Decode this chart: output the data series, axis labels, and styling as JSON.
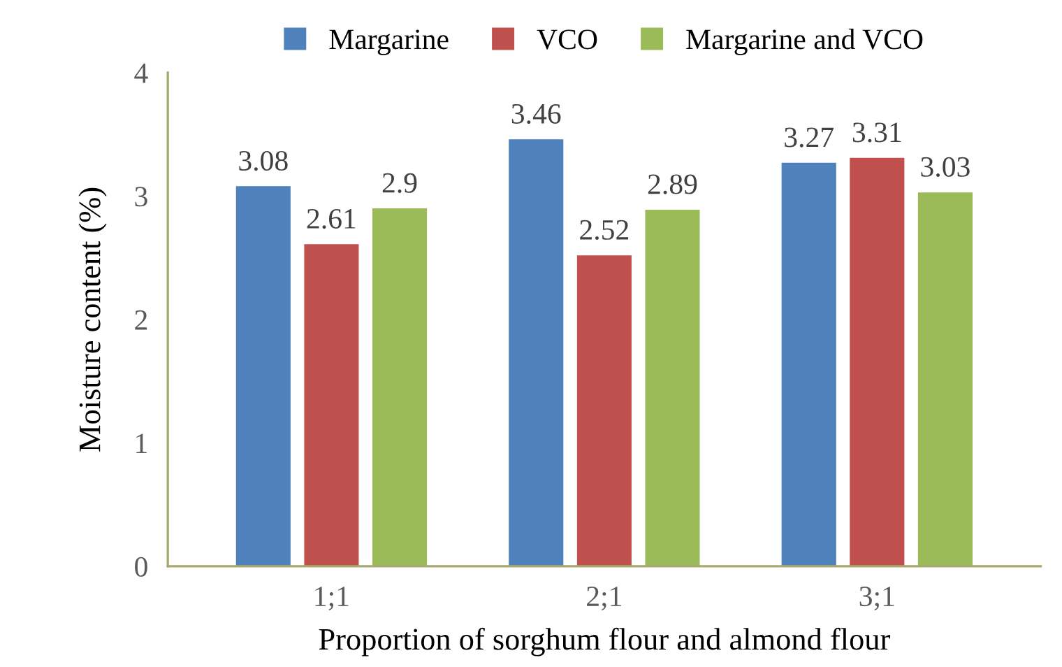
{
  "chart_data": {
    "type": "bar",
    "xlabel": "Proportion of sorghum flour and almond flour",
    "ylabel": "Moisture content (%)",
    "categories": [
      "1;1",
      "2;1",
      "3;1"
    ],
    "series": [
      {
        "name": "Margarine",
        "color": "#4f81bd",
        "values": [
          3.08,
          3.46,
          3.27
        ]
      },
      {
        "name": "VCO",
        "color": "#c0504d",
        "values": [
          2.61,
          2.52,
          3.31
        ]
      },
      {
        "name": "Margarine and VCO",
        "color": "#9bbb59",
        "values": [
          2.9,
          2.89,
          3.03
        ]
      }
    ],
    "ylim": [
      0,
      4
    ],
    "yticks": [
      0,
      1,
      2,
      3,
      4
    ],
    "grid": false,
    "legend": "top",
    "data_labels": true
  }
}
